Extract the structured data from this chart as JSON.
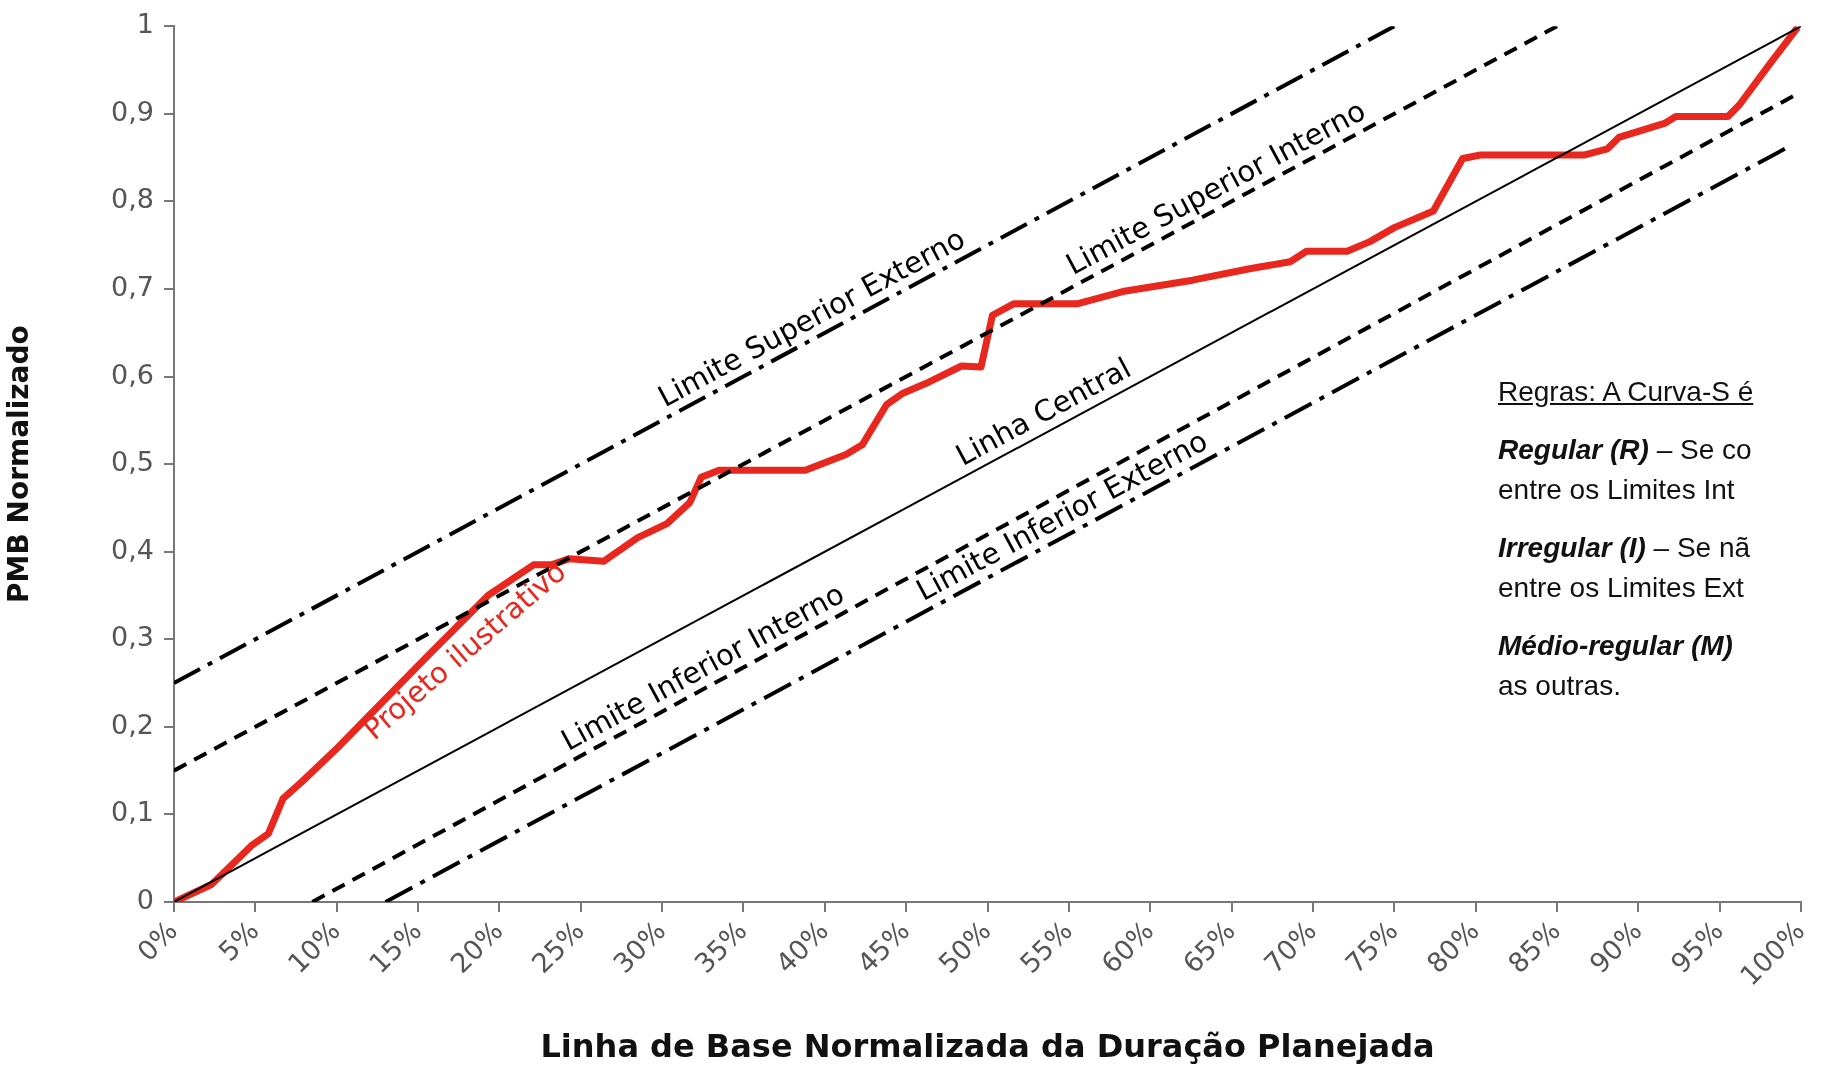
{
  "chart_data": {
    "type": "line",
    "xlabel": "Linha de Base Normalizada da Duração Planejada",
    "ylabel": "PMB Normalizado",
    "xlim": [
      0,
      100
    ],
    "ylim": [
      0,
      1
    ],
    "xticks": [
      {
        "value": 0,
        "label": "0%"
      },
      {
        "value": 5,
        "label": "5%"
      },
      {
        "value": 10,
        "label": "10%"
      },
      {
        "value": 15,
        "label": "15%"
      },
      {
        "value": 20,
        "label": "20%"
      },
      {
        "value": 25,
        "label": "25%"
      },
      {
        "value": 30,
        "label": "30%"
      },
      {
        "value": 35,
        "label": "35%"
      },
      {
        "value": 40,
        "label": "40%"
      },
      {
        "value": 45,
        "label": "45%"
      },
      {
        "value": 50,
        "label": "50%"
      },
      {
        "value": 55,
        "label": "55%"
      },
      {
        "value": 60,
        "label": "60%"
      },
      {
        "value": 65,
        "label": "65%"
      },
      {
        "value": 70,
        "label": "70%"
      },
      {
        "value": 75,
        "label": "75%"
      },
      {
        "value": 80,
        "label": "80%"
      },
      {
        "value": 85,
        "label": "85%"
      },
      {
        "value": 90,
        "label": "90%"
      },
      {
        "value": 95,
        "label": "95%"
      },
      {
        "value": 100,
        "label": "100%"
      }
    ],
    "yticks": [
      0,
      {
        "value": 0.1,
        "label": "0,1"
      },
      {
        "value": 0.2,
        "label": "0,2"
      },
      {
        "value": 0.3,
        "label": "0,3"
      },
      {
        "value": 0.4,
        "label": "0,4"
      },
      {
        "value": 0.5,
        "label": "0,5"
      },
      {
        "value": 0.6,
        "label": "0,6"
      },
      {
        "value": 0.7,
        "label": "0,7"
      },
      {
        "value": 0.8,
        "label": "0,8"
      },
      {
        "value": 0.9,
        "label": "0,9"
      },
      1
    ],
    "grid": false,
    "legend": false,
    "marker": "none",
    "series": [
      {
        "name": "Limite Superior Externo",
        "color": "#000000",
        "line_style": "dashdot",
        "x": [
          0,
          75
        ],
        "values": [
          0.25,
          1
        ]
      },
      {
        "name": "Limite Superior Interno",
        "color": "#000000",
        "line_style": "dashed",
        "x": [
          0,
          85
        ],
        "values": [
          0.15,
          1
        ]
      },
      {
        "name": "Linha Central",
        "color": "#000000",
        "line_style": "solid",
        "x": [
          0,
          100
        ],
        "values": [
          0,
          1
        ]
      },
      {
        "name": "Limite Inferior Interno",
        "color": "#000000",
        "line_style": "dashed",
        "x": [
          8.5,
          99.5
        ],
        "values": [
          0,
          0.92
        ]
      },
      {
        "name": "Limite Inferior Externo",
        "color": "#000000",
        "line_style": "dashdot",
        "x": [
          13,
          99
        ],
        "values": [
          0,
          0.86
        ]
      },
      {
        "name": "Projeto ilustrativo",
        "color": "#e8281e",
        "line_style": "solid",
        "x": [
          0,
          2.3,
          3.7,
          4.8,
          5.8,
          6.7,
          7.9,
          10.1,
          12.9,
          15.7,
          19.3,
          22.1,
          23.2,
          24.3,
          26.4,
          28.5,
          30.3,
          31.7,
          32.4,
          33.5,
          35.6,
          38.8,
          41.3,
          42.3,
          43.8,
          44.8,
          46.2,
          48.4,
          49.6,
          50.3,
          51.6,
          53.3,
          55.5,
          58.3,
          62.6,
          66.1,
          68.6,
          69.6,
          72.1,
          73.5,
          75,
          77.4,
          79.2,
          80.3,
          83.8,
          86.7,
          88.1,
          88.8,
          91.6,
          92.3,
          95.5,
          96.2,
          98,
          99.8
        ],
        "values": [
          0,
          0.02,
          0.045,
          0.065,
          0.078,
          0.118,
          0.138,
          0.177,
          0.23,
          0.283,
          0.35,
          0.385,
          0.385,
          0.392,
          0.389,
          0.416,
          0.432,
          0.456,
          0.485,
          0.493,
          0.493,
          0.493,
          0.511,
          0.522,
          0.568,
          0.581,
          0.592,
          0.612,
          0.611,
          0.67,
          0.683,
          0.683,
          0.683,
          0.697,
          0.71,
          0.723,
          0.731,
          0.743,
          0.743,
          0.754,
          0.77,
          0.789,
          0.849,
          0.853,
          0.853,
          0.853,
          0.86,
          0.873,
          0.889,
          0.897,
          0.897,
          0.91,
          0.955,
          0.999
        ]
      }
    ],
    "annotations": [
      "Regras: A Curva-S é",
      "Regular (R) – Se co",
      "entre os Limites Int",
      "Irregular (I) – Se nã",
      "entre os Limites Ext",
      "Médio-regular (M)",
      "as outras."
    ]
  }
}
